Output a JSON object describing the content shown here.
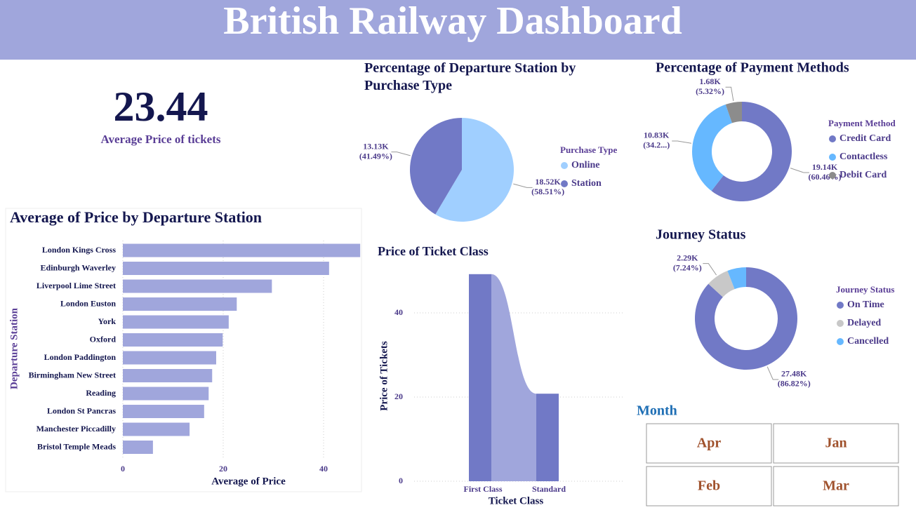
{
  "header": {
    "title": "British Railway Dashboard"
  },
  "kpi": {
    "value": "23.44",
    "label": "Average Price of tickets"
  },
  "chart_data": [
    {
      "type": "bar",
      "orientation": "horizontal",
      "title": "Average of Price by Departure Station",
      "categories": [
        "London Kings Cross",
        "Edinburgh Waverley",
        "Liverpool Lime Street",
        "London Euston",
        "York",
        "Oxford",
        "London Paddington",
        "Birmingham New Street",
        "Reading",
        "London St Pancras",
        "Manchester Piccadilly",
        "Bristol Temple Meads"
      ],
      "values": [
        47.3,
        41.1,
        29.7,
        22.7,
        21.1,
        19.9,
        18.6,
        17.8,
        17.1,
        16.2,
        13.3,
        6.0
      ],
      "color": "#a0a6dc",
      "xlim": [
        0,
        47.5
      ],
      "xticks": [
        0,
        20,
        40
      ],
      "grid": true,
      "xlabel": "Average of Price",
      "ylabel": "Departure Station"
    },
    {
      "type": "pie",
      "title": "Percentage of Departure Station by Purchase Type",
      "legend_title": "Purchase Type",
      "series": [
        {
          "name": "Online",
          "color": "#a0cfff",
          "values": [
            18520
          ]
        },
        {
          "name": "Station",
          "color": "#7179c6",
          "values": [
            13130
          ]
        }
      ],
      "value_labels": [
        "18.52K",
        "13.13K"
      ],
      "percent_labels": [
        "(58.51%)",
        "(41.49%)"
      ]
    },
    {
      "type": "donut",
      "title": "Percentage of Payment Methods",
      "legend_title": "Payment Method",
      "series": [
        {
          "name": "Credit Card",
          "color": "#7179c6",
          "values": [
            19140
          ]
        },
        {
          "name": "Contactless",
          "color": "#66b8ff",
          "values": [
            10830
          ]
        },
        {
          "name": "Debit Card",
          "color": "#8c8c8c",
          "values": [
            1680
          ]
        }
      ],
      "value_labels": [
        "19.14K",
        "10.83K",
        "1.68K"
      ],
      "percent_labels": [
        "(60.46%)",
        "(34.2...)",
        "(5.32%)"
      ]
    },
    {
      "type": "ribbon",
      "title": "Price of Ticket Class",
      "categories": [
        "First Class",
        "Standard"
      ],
      "values": [
        49.2,
        20.8
      ],
      "color": "#7179c6",
      "ribbon_color": "#a0a6dc",
      "ylim": [
        0,
        50
      ],
      "yticks": [
        0,
        20,
        40
      ],
      "grid": true,
      "xlabel": "Ticket Class",
      "ylabel": "Price of Tickets"
    },
    {
      "type": "donut",
      "title": "Journey Status",
      "legend_title": "Journey Status",
      "series": [
        {
          "name": "On Time",
          "color": "#7179c6",
          "values": [
            27480
          ]
        },
        {
          "name": "Delayed",
          "color": "#c8c8c8",
          "values": [
            2290
          ]
        },
        {
          "name": "Cancelled",
          "color": "#66b8ff",
          "values": [
            1880
          ]
        }
      ],
      "value_labels": [
        "27.48K",
        "2.29K",
        null
      ],
      "percent_labels": [
        "(86.82%)",
        "(7.24%)",
        null
      ]
    }
  ],
  "slicer": {
    "title": "Month",
    "items": [
      "Apr",
      "Jan",
      "Feb",
      "Mar"
    ]
  }
}
